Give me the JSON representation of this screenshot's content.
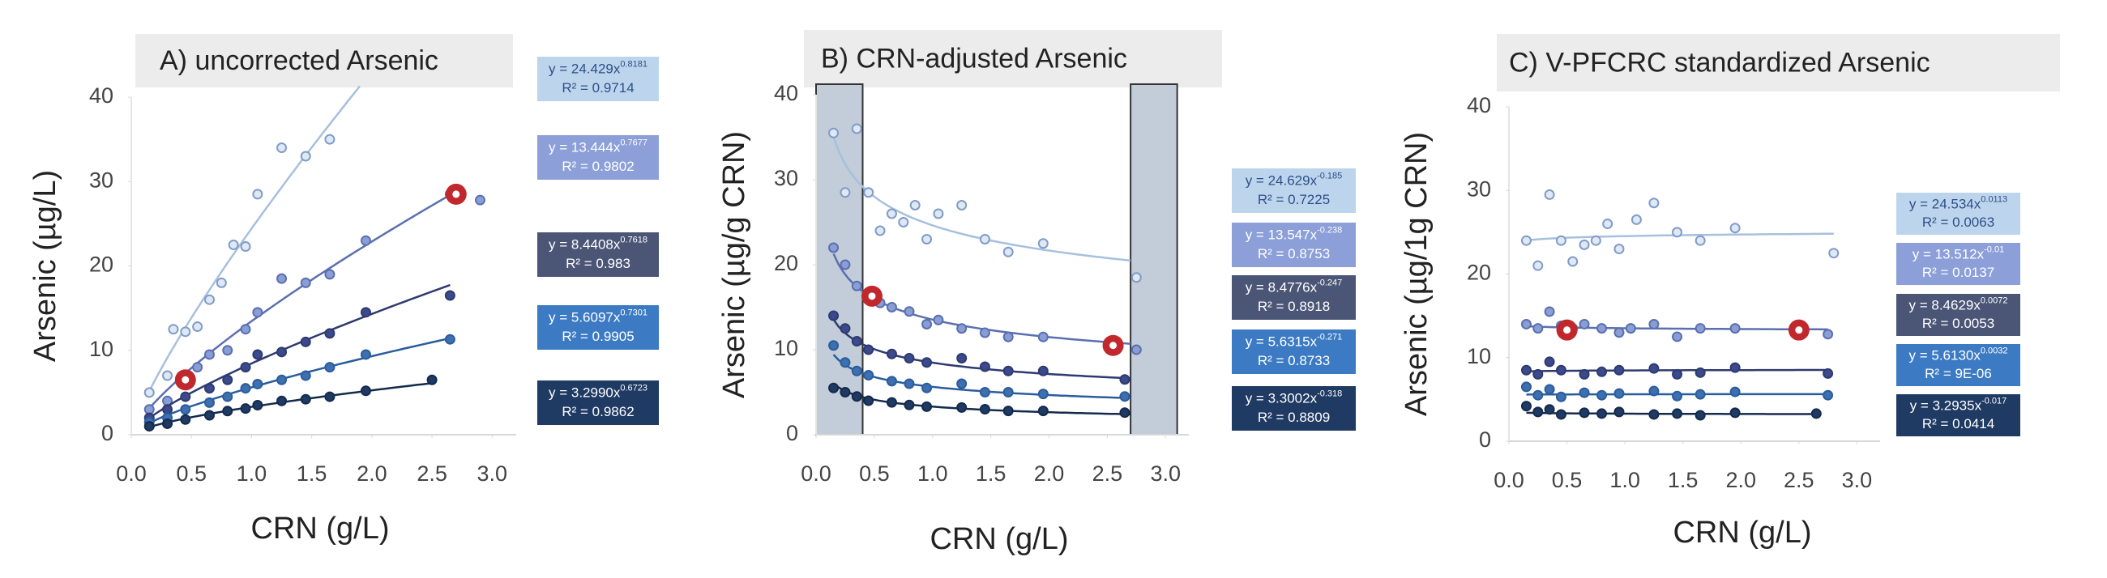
{
  "chart_data": [
    {
      "type": "scatter",
      "title": "A) uncorrected Arsenic",
      "xlabel": "CRN (g/L)",
      "ylabel": "Arsenic (µg/L)",
      "xlim": [
        0,
        3.2
      ],
      "xticks": [
        {
          "value": 0,
          "label": "0.0"
        },
        {
          "value": 0.5,
          "label": "0.5"
        },
        {
          "value": 1,
          "label": "1.0"
        },
        {
          "value": 1.5,
          "label": "1.5"
        },
        {
          "value": 2,
          "label": "2.0"
        },
        {
          "value": 2.5,
          "label": "2.5"
        },
        {
          "value": 3,
          "label": "3.0"
        }
      ],
      "ylim": [
        0,
        40
      ],
      "yticks": [
        0,
        10,
        20,
        30,
        40
      ],
      "highlights": [
        {
          "x": 0.45,
          "y": 6.5
        },
        {
          "x": 2.7,
          "y": 28.5
        }
      ],
      "series": [
        {
          "color": "#7f9cc8",
          "fill": "#dfe8f4",
          "box_color": "#bdd5ec",
          "text_color": "#2d4f8a",
          "equation": "y = 24.429x",
          "exponent": "0.8181",
          "r2": "R² = 0.9714",
          "fit": {
            "a": 24.429,
            "b": 0.8181,
            "x_range": [
              0.15,
              1.9
            ]
          },
          "x": [
            0.15,
            0.3,
            0.35,
            0.45,
            0.55,
            0.65,
            0.75,
            0.85,
            0.95,
            1.05,
            1.25,
            1.45,
            1.65
          ],
          "values": [
            5,
            7,
            12.5,
            12.2,
            12.8,
            16,
            18,
            22.5,
            22.3,
            28.5,
            34,
            33,
            35
          ]
        },
        {
          "color": "#5b6fb0",
          "fill": "#8a9ed6",
          "box_color": "#8c9fd8",
          "text_color": "#fff",
          "equation": "y = 13.444x",
          "exponent": "0.7677",
          "r2": "R² = 0.9802",
          "fit": {
            "a": 13.444,
            "b": 0.7677,
            "x_range": [
              0.15,
              2.7
            ]
          },
          "x": [
            0.15,
            0.3,
            0.45,
            0.55,
            0.65,
            0.8,
            0.95,
            1.05,
            1.25,
            1.45,
            1.65,
            1.95,
            2.65,
            2.9
          ],
          "values": [
            3,
            4,
            6.5,
            8,
            9.5,
            10,
            12.5,
            14.5,
            18.5,
            18,
            19,
            23,
            28.5,
            27.8
          ]
        },
        {
          "color": "#2e3a70",
          "fill": "#3b4a8c",
          "box_color": "#4b5677",
          "text_color": "#fff",
          "equation": "y =  8.4408x",
          "exponent": "0.7618",
          "r2": "R² = 0.983",
          "fit": {
            "a": 8.4408,
            "b": 0.7618,
            "x_range": [
              0.15,
              2.65
            ]
          },
          "x": [
            0.15,
            0.3,
            0.45,
            0.65,
            0.8,
            0.95,
            1.05,
            1.25,
            1.45,
            1.65,
            1.95,
            2.65
          ],
          "values": [
            2,
            3,
            4.5,
            5.5,
            6.5,
            8,
            9.5,
            9.8,
            11,
            12,
            14.5,
            16.5
          ]
        },
        {
          "color": "#2a5d9e",
          "fill": "#3e6fae",
          "box_color": "#3c7bc4",
          "text_color": "#fff",
          "equation": "y = 5.6097x",
          "exponent": "0.7301",
          "r2": "R² = 0.9905",
          "fit": {
            "a": 5.6097,
            "b": 0.7301,
            "x_range": [
              0.15,
              2.65
            ]
          },
          "x": [
            0.15,
            0.3,
            0.45,
            0.65,
            0.8,
            0.95,
            1.05,
            1.25,
            1.45,
            1.65,
            1.95,
            2.65
          ],
          "values": [
            1.5,
            2,
            3,
            3.8,
            4.5,
            5.5,
            6,
            6.5,
            7,
            8,
            9.5,
            11.3
          ]
        },
        {
          "color": "#142a4d",
          "fill": "#1f3a63",
          "box_color": "#1f3a63",
          "text_color": "#fff",
          "equation": "y = 3.2990x",
          "exponent": "0.6723",
          "r2": "R² = 0.9862",
          "fit": {
            "a": 3.299,
            "b": 0.6723,
            "x_range": [
              0.15,
              2.5
            ]
          },
          "x": [
            0.15,
            0.3,
            0.45,
            0.65,
            0.8,
            0.95,
            1.05,
            1.25,
            1.45,
            1.65,
            1.95,
            2.5
          ],
          "values": [
            1,
            1.3,
            1.8,
            2.3,
            2.8,
            3.1,
            3.5,
            4,
            4.2,
            4.5,
            5.2,
            6.5
          ]
        }
      ]
    },
    {
      "type": "scatter",
      "title": "B) CRN-adjusted Arsenic",
      "xlabel": "CRN (g/L)",
      "ylabel": "Arsenic (µg/g CRN)",
      "xlim": [
        0,
        3.2
      ],
      "xticks": [
        {
          "value": 0,
          "label": "0.0"
        },
        {
          "value": 0.5,
          "label": "0.5"
        },
        {
          "value": 1,
          "label": "1.0"
        },
        {
          "value": 1.5,
          "label": "1.5"
        },
        {
          "value": 2,
          "label": "2.0"
        },
        {
          "value": 2.5,
          "label": "2.5"
        },
        {
          "value": 3,
          "label": "3.0"
        }
      ],
      "ylim": [
        0,
        40
      ],
      "yticks": [
        0,
        10,
        20,
        30,
        40
      ],
      "shaded_ranges": [
        [
          0,
          0.4
        ],
        [
          2.7,
          3.1
        ]
      ],
      "highlights": [
        {
          "x": 0.48,
          "y": 16.3
        },
        {
          "x": 2.55,
          "y": 10.5
        }
      ],
      "series": [
        {
          "color": "#7f9cc8",
          "fill": "#dfe8f4",
          "box_color": "#bdd5ec",
          "text_color": "#2d4f8a",
          "equation": "y = 24.629x",
          "exponent": "-0.185",
          "r2": "R² = 0.7225",
          "fit": {
            "a": 24.629,
            "b": -0.185,
            "x_range": [
              0.15,
              2.7
            ]
          },
          "x": [
            0.15,
            0.25,
            0.35,
            0.45,
            0.55,
            0.65,
            0.75,
            0.85,
            0.95,
            1.05,
            1.25,
            1.45,
            1.65,
            1.95,
            2.75
          ],
          "values": [
            35.5,
            28.5,
            36,
            28.5,
            24,
            26,
            25,
            27,
            23,
            26,
            27,
            23,
            21.5,
            22.5,
            18.5
          ]
        },
        {
          "color": "#5b6fb0",
          "fill": "#8a9ed6",
          "box_color": "#8c9fd8",
          "text_color": "#fff",
          "equation": "y = 13.547x",
          "exponent": "-0.238",
          "r2": "R² = 0.8753",
          "fit": {
            "a": 13.547,
            "b": -0.238,
            "x_range": [
              0.15,
              2.7
            ]
          },
          "x": [
            0.15,
            0.25,
            0.35,
            0.45,
            0.55,
            0.65,
            0.8,
            0.95,
            1.05,
            1.25,
            1.45,
            1.65,
            1.95,
            2.75
          ],
          "values": [
            22,
            20,
            17.5,
            16.5,
            15.5,
            15,
            14.5,
            13,
            13.5,
            12.5,
            12,
            11.5,
            11.5,
            10
          ]
        },
        {
          "color": "#2e3a70",
          "fill": "#3b4a8c",
          "box_color": "#4b5677",
          "text_color": "#fff",
          "equation": "y = 8.4776x",
          "exponent": "-0.247",
          "r2": "R² = 0.8918",
          "fit": {
            "a": 8.4776,
            "b": -0.247,
            "x_range": [
              0.15,
              2.7
            ]
          },
          "x": [
            0.15,
            0.25,
            0.35,
            0.45,
            0.65,
            0.8,
            0.95,
            1.25,
            1.45,
            1.65,
            1.95,
            2.65
          ],
          "values": [
            14,
            12.5,
            11,
            10,
            9.5,
            9,
            8.5,
            9,
            8,
            7.5,
            7.5,
            6.5
          ]
        },
        {
          "color": "#2a5d9e",
          "fill": "#3e6fae",
          "box_color": "#3c7bc4",
          "text_color": "#fff",
          "equation": "y = 5.6315x",
          "exponent": "-0.271",
          "r2": "R² = 0.8733",
          "fit": {
            "a": 5.6315,
            "b": -0.271,
            "x_range": [
              0.15,
              2.7
            ]
          },
          "x": [
            0.15,
            0.25,
            0.35,
            0.45,
            0.65,
            0.8,
            0.95,
            1.25,
            1.45,
            1.65,
            1.95,
            2.65
          ],
          "values": [
            10.5,
            8.5,
            7.5,
            7,
            6.3,
            6,
            5.5,
            6,
            5,
            5,
            4.8,
            4.5
          ]
        },
        {
          "color": "#142a4d",
          "fill": "#1f3a63",
          "box_color": "#1f3a63",
          "text_color": "#fff",
          "equation": "y = 3.3002x",
          "exponent": "-0.318",
          "r2": "R² = 0.8809",
          "fit": {
            "a": 3.3002,
            "b": -0.318,
            "x_range": [
              0.15,
              2.7
            ]
          },
          "x": [
            0.15,
            0.25,
            0.35,
            0.45,
            0.65,
            0.8,
            0.95,
            1.25,
            1.45,
            1.65,
            1.95,
            2.65
          ],
          "values": [
            5.5,
            5,
            4.5,
            4,
            3.8,
            3.5,
            3.3,
            3.2,
            3,
            2.8,
            2.8,
            2.6
          ]
        }
      ]
    },
    {
      "type": "scatter",
      "title": "C) V-PFCRC standardized Arsenic",
      "xlabel": "CRN (g/L)",
      "ylabel": "Arsenic (µg/1g CRN)",
      "xlim": [
        0,
        3.2
      ],
      "xticks": [
        {
          "value": 0,
          "label": "0.0"
        },
        {
          "value": 0.5,
          "label": "0.5"
        },
        {
          "value": 1,
          "label": "1.0"
        },
        {
          "value": 1.5,
          "label": "1.5"
        },
        {
          "value": 2,
          "label": "2.0"
        },
        {
          "value": 2.5,
          "label": "2.5"
        },
        {
          "value": 3,
          "label": "3.0"
        }
      ],
      "ylim": [
        0,
        40
      ],
      "yticks": [
        0,
        10,
        20,
        30,
        40
      ],
      "highlights": [
        {
          "x": 0.5,
          "y": 13.3
        },
        {
          "x": 2.5,
          "y": 13.3
        }
      ],
      "series": [
        {
          "color": "#7f9cc8",
          "fill": "#dfe8f4",
          "box_color": "#bdd5ec",
          "text_color": "#2d4f8a",
          "equation": "y = 24.534x",
          "exponent": "0.0113",
          "r2": "R² = 0.0063",
          "fit": {
            "a": 24.534,
            "b": 0.0113,
            "x_range": [
              0.15,
              2.8
            ]
          },
          "x": [
            0.15,
            0.25,
            0.35,
            0.45,
            0.55,
            0.65,
            0.75,
            0.85,
            0.95,
            1.1,
            1.25,
            1.45,
            1.65,
            1.95,
            2.8
          ],
          "values": [
            24,
            21,
            29.5,
            24,
            21.5,
            23.5,
            24,
            26,
            23,
            26.5,
            28.5,
            25,
            24,
            25.5,
            22.5
          ]
        },
        {
          "color": "#5b6fb0",
          "fill": "#8a9ed6",
          "box_color": "#8c9fd8",
          "text_color": "#fff",
          "equation": "y = 13.512x",
          "exponent": "-0.01",
          "r2": "R² = 0.0137",
          "fit": {
            "a": 13.512,
            "b": -0.01,
            "x_range": [
              0.15,
              2.75
            ]
          },
          "x": [
            0.15,
            0.25,
            0.35,
            0.45,
            0.55,
            0.65,
            0.8,
            0.95,
            1.05,
            1.25,
            1.45,
            1.65,
            1.95,
            2.75
          ],
          "values": [
            14,
            13.5,
            15.5,
            13.8,
            13.5,
            14,
            13.5,
            13,
            13.5,
            14,
            12.5,
            13.5,
            13.5,
            12.8
          ]
        },
        {
          "color": "#2e3a70",
          "fill": "#3b4a8c",
          "box_color": "#4b5677",
          "text_color": "#fff",
          "equation": "y = 8.4629x",
          "exponent": "0.0072",
          "r2": "R² = 0.0053",
          "fit": {
            "a": 8.4629,
            "b": 0.0072,
            "x_range": [
              0.15,
              2.75
            ]
          },
          "x": [
            0.15,
            0.25,
            0.35,
            0.45,
            0.65,
            0.8,
            0.95,
            1.25,
            1.45,
            1.65,
            1.95,
            2.75
          ],
          "values": [
            8.5,
            8,
            9.5,
            8.5,
            8,
            8.3,
            8.5,
            8.7,
            8,
            8.2,
            8.8,
            8.1
          ]
        },
        {
          "color": "#2a5d9e",
          "fill": "#3e6fae",
          "box_color": "#3c7bc4",
          "text_color": "#fff",
          "equation": "y = 5.6130x",
          "exponent": "0.0032",
          "r2": "R² = 9E-06",
          "fit": {
            "a": 5.613,
            "b": 0.0032,
            "x_range": [
              0.15,
              2.75
            ]
          },
          "x": [
            0.15,
            0.25,
            0.35,
            0.45,
            0.65,
            0.8,
            0.95,
            1.25,
            1.45,
            1.65,
            1.95,
            2.75
          ],
          "values": [
            6.5,
            5.5,
            6.2,
            5.3,
            5.8,
            5.5,
            5.7,
            6,
            5.4,
            5.6,
            5.9,
            5.5
          ]
        },
        {
          "color": "#142a4d",
          "fill": "#1f3a63",
          "box_color": "#1f3a63",
          "text_color": "#fff",
          "equation": "y = 3.2935x",
          "exponent": "-0.017",
          "r2": "R² = 0.0414",
          "fit": {
            "a": 3.2935,
            "b": -0.017,
            "x_range": [
              0.15,
              2.65
            ]
          },
          "x": [
            0.15,
            0.25,
            0.35,
            0.45,
            0.65,
            0.8,
            0.95,
            1.25,
            1.45,
            1.65,
            1.95,
            2.65
          ],
          "values": [
            4.2,
            3.5,
            3.8,
            3.2,
            3.4,
            3.3,
            3.5,
            3.2,
            3.3,
            3.1,
            3.4,
            3.3
          ]
        }
      ]
    }
  ]
}
